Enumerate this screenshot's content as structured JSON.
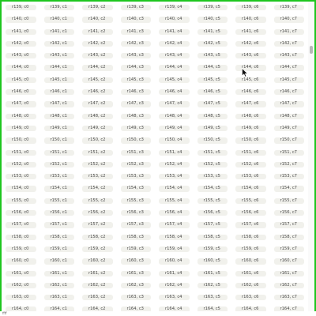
{
  "status_text": "ffff",
  "colors": {
    "border": "#1fc61f",
    "cell_bg": "#f1f1ec",
    "cell_text": "#4a4a4a",
    "thumb": "#b8b8b8"
  },
  "cursor_icon": "mouse-pointer-icon",
  "rows": [
    {
      "cells": [
        "r139, c0",
        "r139, c1",
        "r139, c2",
        "r139, c3",
        "r139, c4",
        "r139, c5",
        "r139, c6",
        "r139, c7"
      ]
    },
    {
      "cells": [
        "r140, c0",
        "r140, c1",
        "r140, c2",
        "r140, c3",
        "r140, c4",
        "r140, c5",
        "r140, c6",
        "r140, c7"
      ]
    },
    {
      "cells": [
        "r141, c0",
        "r141, c1",
        "r141, c2",
        "r141, c3",
        "r141, c4",
        "r141, c5",
        "r141, c6",
        "r141, c7"
      ]
    },
    {
      "cells": [
        "r142, c0",
        "r142, c1",
        "r142, c2",
        "r142, c3",
        "r142, c4",
        "r142, c5",
        "r142, c6",
        "r142, c7"
      ]
    },
    {
      "cells": [
        "r143, c0",
        "r143, c1",
        "r143, c2",
        "r143, c3",
        "r143, c4",
        "r143, c5",
        "r143, c6",
        "r143, c7"
      ]
    },
    {
      "cells": [
        "r144, c0",
        "r144, c1",
        "r144, c2",
        "r144, c3",
        "r144, c4",
        "r144, c5",
        "r144, c6",
        "r144, c7"
      ]
    },
    {
      "cells": [
        "r145, c0",
        "r145, c1",
        "r145, c2",
        "r145, c3",
        "r145, c4",
        "r145, c5",
        "r145, c6",
        "r145, c7"
      ]
    },
    {
      "cells": [
        "r146, c0",
        "r146, c1",
        "r146, c2",
        "r146, c3",
        "r146, c4",
        "r146, c5",
        "r146, c6",
        "r146, c7"
      ]
    },
    {
      "cells": [
        "r147, c0",
        "r147, c1",
        "r147, c2",
        "r147, c3",
        "r147, c4",
        "r147, c5",
        "r147, c6",
        "r147, c7"
      ]
    },
    {
      "cells": [
        "r148, c0",
        "r148, c1",
        "r148, c2",
        "r148, c3",
        "r148, c4",
        "r148, c5",
        "r148, c6",
        "r148, c7"
      ]
    },
    {
      "cells": [
        "r149, c0",
        "r149, c1",
        "r149, c2",
        "r149, c3",
        "r149, c4",
        "r149, c5",
        "r149, c6",
        "r149, c7"
      ]
    },
    {
      "cells": [
        "r150, c0",
        "r150, c1",
        "r150, c2",
        "r150, c3",
        "r150, c4",
        "r150, c5",
        "r150, c6",
        "r150, c7"
      ]
    },
    {
      "cells": [
        "r151, c0",
        "r151, c1",
        "r151, c2",
        "r151, c3",
        "r151, c4",
        "r151, c5",
        "r151, c6",
        "r151, c7"
      ]
    },
    {
      "cells": [
        "r152, c0",
        "r152, c1",
        "r152, c2",
        "r152, c3",
        "r152, c4",
        "r152, c5",
        "r152, c6",
        "r152, c7"
      ]
    },
    {
      "cells": [
        "r153, c0",
        "r153, c1",
        "r153, c2",
        "r153, c3",
        "r153, c4",
        "r153, c5",
        "r153, c6",
        "r153, c7"
      ]
    },
    {
      "cells": [
        "r154, c0",
        "r154, c1",
        "r154, c2",
        "r154, c3",
        "r154, c4",
        "r154, c5",
        "r154, c6",
        "r154, c7"
      ]
    },
    {
      "cells": [
        "r155, c0",
        "r155, c1",
        "r155, c2",
        "r155, c3",
        "r155, c4",
        "r155, c5",
        "r155, c6",
        "r155, c7"
      ]
    },
    {
      "cells": [
        "r156, c0",
        "r156, c1",
        "r156, c2",
        "r156, c3",
        "r156, c4",
        "r156, c5",
        "r156, c6",
        "r156, c7"
      ]
    },
    {
      "cells": [
        "r157, c0",
        "r157, c1",
        "r157, c2",
        "r157, c3",
        "r157, c4",
        "r157, c5",
        "r157, c6",
        "r157, c7"
      ]
    },
    {
      "cells": [
        "r158, c0",
        "r158, c1",
        "r158, c2",
        "r158, c3",
        "r158, c4",
        "r158, c5",
        "r158, c6",
        "r158, c7"
      ]
    },
    {
      "cells": [
        "r159, c0",
        "r159, c1",
        "r159, c2",
        "r159, c3",
        "r159, c4",
        "r159, c5",
        "r159, c6",
        "r159, c7"
      ]
    },
    {
      "cells": [
        "r160, c0",
        "r160, c1",
        "r160, c2",
        "r160, c3",
        "r160, c4",
        "r160, c5",
        "r160, c6",
        "r160, c7"
      ]
    },
    {
      "cells": [
        "r161, c0",
        "r161, c1",
        "r161, c2",
        "r161, c3",
        "r161, c4",
        "r161, c5",
        "r161, c6",
        "r161, c7"
      ]
    },
    {
      "cells": [
        "r162, c0",
        "r162, c1",
        "r162, c2",
        "r162, c3",
        "r162, c4",
        "r162, c5",
        "r162, c6",
        "r162, c7"
      ]
    },
    {
      "cells": [
        "r163, c0",
        "r163, c1",
        "r163, c2",
        "r163, c3",
        "r163, c4",
        "r163, c5",
        "r163, c6",
        "r163, c7"
      ]
    },
    {
      "cells": [
        "r164, c0",
        "r164, c1",
        "r164, c2",
        "r164, c3",
        "r164, c4",
        "r164, c5",
        "r164, c6",
        "r164, c7"
      ]
    }
  ]
}
